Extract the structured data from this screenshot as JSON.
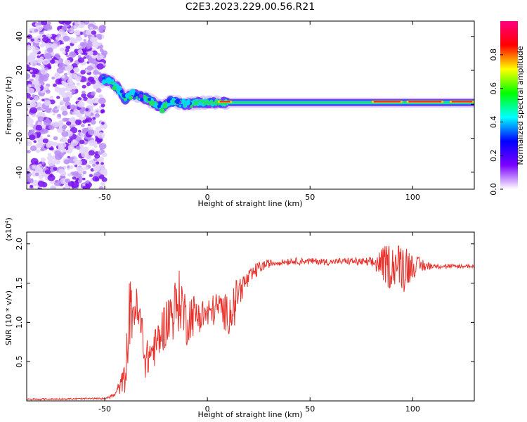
{
  "title": "C2E3.2023.229.00.56.R21",
  "chart_data": [
    {
      "type": "heatmap",
      "xlabel": "Height of straight line (km)",
      "ylabel": "Frequency (Hz)",
      "xlim": [
        -88,
        130
      ],
      "ylim": [
        -50,
        49
      ],
      "x_ticks": [
        -50,
        0,
        50,
        100
      ],
      "y_ticks": [
        -40,
        -20,
        0,
        20,
        40
      ],
      "colorbar": {
        "label": "Normalized spectral amplitude",
        "range": [
          0,
          1
        ],
        "ticks": [
          0.0,
          0.2,
          0.4,
          0.6,
          0.8
        ],
        "tick_labels": [
          "0.0",
          "0.2",
          "0.4",
          "0.6",
          "0.8"
        ],
        "colors": [
          "#ffffff",
          "#7b00ff",
          "#0000ff",
          "#00ffff",
          "#00ff00",
          "#ffff00",
          "#ff0000",
          "#ff0080"
        ]
      },
      "ridge": {
        "x": [
          -52,
          -48,
          -44,
          -40,
          -37,
          -33,
          -29,
          -25,
          -22,
          -18,
          -14,
          -10,
          -5,
          0,
          5,
          10,
          20,
          30,
          50,
          80,
          96,
          100,
          130
        ],
        "y": [
          15,
          14,
          10,
          3,
          6,
          5,
          3,
          0,
          -2,
          2,
          1,
          0,
          1,
          1,
          1,
          1,
          1,
          1,
          1,
          1,
          1,
          1,
          1
        ]
      },
      "noise_region_x": [
        -88,
        -50
      ]
    },
    {
      "type": "line",
      "xlabel": "Height of straight line (km)",
      "ylabel": "SNR (10 * v/v)",
      "y_multiplier_label": "(x10",
      "y_multiplier_exp": "4",
      "y_multiplier_close": ")",
      "xlim": [
        -88,
        130
      ],
      "ylim": [
        0,
        2.15
      ],
      "x_ticks": [
        -50,
        0,
        50,
        100
      ],
      "y_ticks": [
        0.5,
        1.0,
        1.5,
        2.0
      ],
      "y_tick_labels": [
        "0.5",
        "1.0",
        "1.5",
        "2.0"
      ],
      "line_color": "#e8302a",
      "envelope": {
        "x": [
          -88,
          -50,
          -45,
          -40,
          -38,
          -35,
          -32,
          -30,
          -28,
          -25,
          -22,
          -18,
          -15,
          -13,
          -10,
          -8,
          -5,
          0,
          5,
          10,
          13,
          15,
          20,
          25,
          30,
          40,
          50,
          60,
          70,
          80,
          85,
          88,
          92,
          96,
          100,
          110,
          120,
          130
        ],
        "y": [
          0.02,
          0.03,
          0.08,
          0.3,
          1.1,
          1.2,
          0.9,
          0.5,
          0.6,
          0.7,
          0.9,
          1.1,
          1.2,
          1.3,
          1.0,
          1.1,
          1.1,
          1.1,
          1.2,
          1.1,
          1.2,
          1.4,
          1.55,
          1.7,
          1.75,
          1.78,
          1.78,
          1.77,
          1.78,
          1.76,
          1.75,
          1.72,
          1.74,
          1.73,
          1.72,
          1.72,
          1.71,
          1.72
        ],
        "spread": [
          0,
          0,
          0.03,
          0.2,
          0.45,
          0.3,
          0.3,
          0.25,
          0.25,
          0.25,
          0.3,
          0.35,
          0.4,
          0.4,
          0.3,
          0.3,
          0.25,
          0.2,
          0.2,
          0.25,
          0.3,
          0.2,
          0.12,
          0.08,
          0.05,
          0.04,
          0.04,
          0.04,
          0.04,
          0.06,
          0.2,
          0.3,
          0.25,
          0.35,
          0.15,
          0.03,
          0.03,
          0.03
        ]
      }
    }
  ]
}
